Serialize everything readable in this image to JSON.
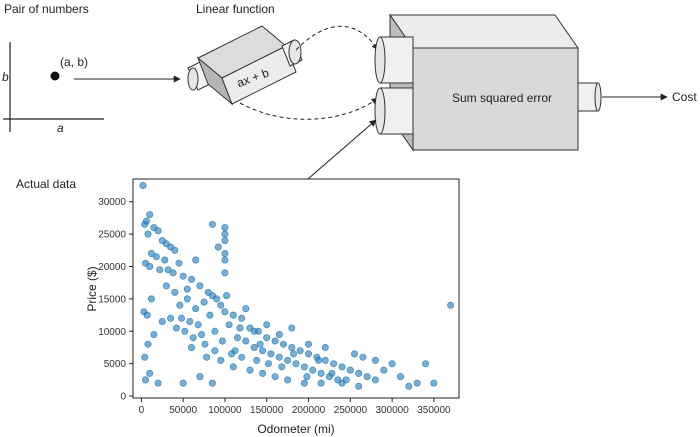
{
  "diagram": {
    "pair_title": "Pair of numbers",
    "point_label": "(a, b)",
    "axis_a": "a",
    "axis_b": "b",
    "linear_title": "Linear function",
    "linear_expr": "ax + b",
    "sse_label": "Sum squared error",
    "cost_label": "Cost",
    "data_title": "Actual data"
  },
  "chart_data": {
    "type": "scatter",
    "xlabel": "Odometer (mi)",
    "ylabel": "Price ($)",
    "xlim": [
      -10000,
      380000
    ],
    "ylim": [
      -300,
      33500
    ],
    "xticks": [
      0,
      50000,
      100000,
      150000,
      200000,
      250000,
      300000,
      350000
    ],
    "yticks": [
      0,
      5000,
      10000,
      15000,
      20000,
      25000,
      30000
    ],
    "point_color": "#1f77b4",
    "points": [
      [
        2000,
        32500
      ],
      [
        10000,
        28000
      ],
      [
        6000,
        27000
      ],
      [
        4000,
        26500
      ],
      [
        15000,
        26000
      ],
      [
        20000,
        25500
      ],
      [
        8000,
        25000
      ],
      [
        25000,
        24000
      ],
      [
        30000,
        23500
      ],
      [
        35000,
        23000
      ],
      [
        40000,
        22500
      ],
      [
        12000,
        22000
      ],
      [
        18000,
        21500
      ],
      [
        28000,
        21000
      ],
      [
        45000,
        20500
      ],
      [
        5000,
        20500
      ],
      [
        10000,
        20000
      ],
      [
        22000,
        19500
      ],
      [
        38000,
        19000
      ],
      [
        50000,
        18500
      ],
      [
        60000,
        18000
      ],
      [
        70000,
        17000
      ],
      [
        55000,
        16500
      ],
      [
        80000,
        16000
      ],
      [
        85000,
        15500
      ],
      [
        90000,
        15000
      ],
      [
        75000,
        14500
      ],
      [
        95000,
        14000
      ],
      [
        65000,
        13500
      ],
      [
        100000,
        13000
      ],
      [
        3000,
        13000
      ],
      [
        7000,
        12500
      ],
      [
        110000,
        12500
      ],
      [
        48000,
        12000
      ],
      [
        120000,
        12000
      ],
      [
        58000,
        11500
      ],
      [
        105000,
        11000
      ],
      [
        130000,
        10500
      ],
      [
        88000,
        10000
      ],
      [
        140000,
        10000
      ],
      [
        72000,
        9500
      ],
      [
        150000,
        9000
      ],
      [
        115000,
        9000
      ],
      [
        160000,
        8500
      ],
      [
        125000,
        8500
      ],
      [
        170000,
        8000
      ],
      [
        135000,
        7500
      ],
      [
        180000,
        7500
      ],
      [
        145000,
        7000
      ],
      [
        190000,
        7000
      ],
      [
        155000,
        6500
      ],
      [
        200000,
        6500
      ],
      [
        165000,
        6000
      ],
      [
        210000,
        6000
      ],
      [
        175000,
        5500
      ],
      [
        220000,
        5500
      ],
      [
        185000,
        5000
      ],
      [
        230000,
        5000
      ],
      [
        195000,
        4500
      ],
      [
        240000,
        4500
      ],
      [
        205000,
        4000
      ],
      [
        250000,
        4000
      ],
      [
        215000,
        3500
      ],
      [
        260000,
        3500
      ],
      [
        225000,
        3000
      ],
      [
        270000,
        3000
      ],
      [
        235000,
        2500
      ],
      [
        280000,
        2500
      ],
      [
        300000,
        5000
      ],
      [
        340000,
        5000
      ],
      [
        370000,
        14000
      ],
      [
        320000,
        1500
      ],
      [
        330000,
        2000
      ],
      [
        350000,
        2000
      ],
      [
        290000,
        4000
      ],
      [
        310000,
        3000
      ],
      [
        100000,
        26000
      ],
      [
        100000,
        25000
      ],
      [
        100000,
        24000
      ],
      [
        100000,
        22000
      ],
      [
        100000,
        21000
      ],
      [
        100000,
        19000
      ],
      [
        85000,
        26500
      ],
      [
        92000,
        23000
      ],
      [
        35000,
        12000
      ],
      [
        42000,
        10500
      ],
      [
        25000,
        11500
      ],
      [
        15000,
        9500
      ],
      [
        60000,
        7500
      ],
      [
        78000,
        6000
      ],
      [
        95000,
        5500
      ],
      [
        110000,
        4500
      ],
      [
        130000,
        4000
      ],
      [
        145000,
        3500
      ],
      [
        160000,
        3000
      ],
      [
        175000,
        2500
      ],
      [
        195000,
        2000
      ],
      [
        215000,
        2000
      ],
      [
        240000,
        2000
      ],
      [
        260000,
        1500
      ],
      [
        5000,
        2500
      ],
      [
        10000,
        3500
      ],
      [
        20000,
        2000
      ],
      [
        50000,
        2000
      ],
      [
        70000,
        3000
      ],
      [
        85000,
        2000
      ],
      [
        120000,
        6000
      ],
      [
        135000,
        10000
      ],
      [
        150000,
        11000
      ],
      [
        165000,
        9500
      ],
      [
        180000,
        10500
      ],
      [
        200000,
        8000
      ],
      [
        220000,
        7500
      ],
      [
        255000,
        6500
      ],
      [
        265000,
        6000
      ],
      [
        280000,
        5500
      ],
      [
        4000,
        6000
      ],
      [
        8000,
        8000
      ],
      [
        12000,
        15000
      ],
      [
        30000,
        17000
      ],
      [
        55000,
        15000
      ],
      [
        65000,
        21000
      ],
      [
        68000,
        11000
      ],
      [
        82000,
        12500
      ],
      [
        97000,
        8500
      ],
      [
        102000,
        15500
      ],
      [
        112000,
        7000
      ],
      [
        125000,
        13500
      ],
      [
        138000,
        5500
      ],
      [
        152000,
        5000
      ],
      [
        168000,
        4500
      ],
      [
        182000,
        6500
      ],
      [
        198000,
        3000
      ],
      [
        212000,
        5500
      ],
      [
        228000,
        3500
      ],
      [
        245000,
        2500
      ],
      [
        32000,
        19500
      ],
      [
        40000,
        16000
      ],
      [
        46000,
        14000
      ],
      [
        52000,
        10000
      ],
      [
        62000,
        9000
      ],
      [
        76000,
        8000
      ],
      [
        88000,
        7000
      ],
      [
        108000,
        6500
      ],
      [
        118000,
        10500
      ],
      [
        142000,
        8000
      ]
    ]
  }
}
